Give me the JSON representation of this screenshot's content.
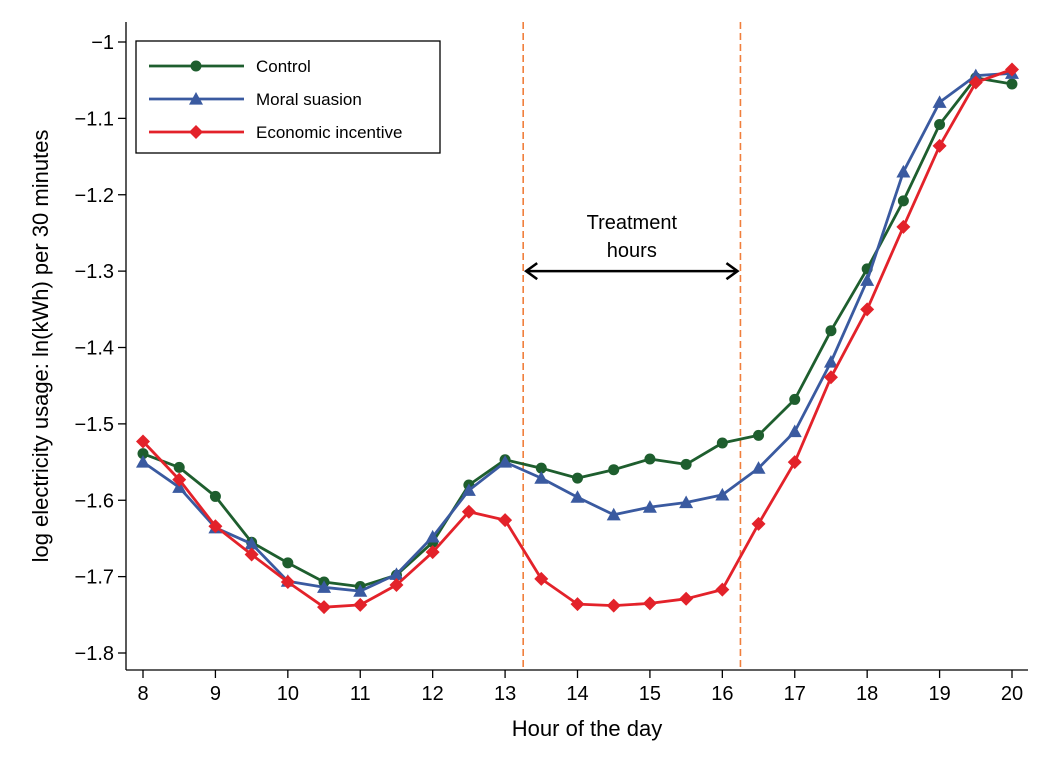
{
  "chart_data": {
    "type": "line",
    "title": "",
    "xlabel": "Hour of the day",
    "ylabel": "log electricity usage: ln(kWh) per 30 minutes",
    "xlim": [
      8,
      20
    ],
    "ylim": [
      -1.8,
      -1.0
    ],
    "x_ticks": [
      8,
      9,
      10,
      11,
      12,
      13,
      14,
      15,
      16,
      17,
      18,
      19,
      20
    ],
    "x_tick_labels": [
      "8",
      "9",
      "10",
      "11",
      "12",
      "13",
      "14",
      "15",
      "16",
      "17",
      "18",
      "19",
      "20"
    ],
    "y_ticks": [
      -1.8,
      -1.7,
      -1.6,
      -1.5,
      -1.4,
      -1.3,
      -1.2,
      -1.1,
      -1.0
    ],
    "y_tick_labels": [
      "−1.8",
      "−1.7",
      "−1.6",
      "−1.5",
      "−1.4",
      "−1.3",
      "−1.2",
      "−1.1",
      "−1"
    ],
    "grid": false,
    "legend_position": "top-left",
    "x": [
      8,
      8.5,
      9,
      9.5,
      10,
      10.5,
      11,
      11.5,
      12,
      12.5,
      13,
      13.5,
      14,
      14.5,
      15,
      15.5,
      16,
      16.5,
      17,
      17.5,
      18,
      18.5,
      19,
      19.5,
      20
    ],
    "series": [
      {
        "name": "Control",
        "color": "#1e5e2e",
        "marker": "circle",
        "values": [
          -1.539,
          -1.557,
          -1.595,
          -1.655,
          -1.682,
          -1.707,
          -1.713,
          -1.698,
          -1.655,
          -1.58,
          -1.547,
          -1.558,
          -1.571,
          -1.56,
          -1.546,
          -1.553,
          -1.525,
          -1.515,
          -1.468,
          -1.378,
          -1.297,
          -1.208,
          -1.108,
          -1.047,
          -1.055
        ]
      },
      {
        "name": "Moral suasion",
        "color": "#3a5aa0",
        "marker": "triangle",
        "values": [
          -1.55,
          -1.583,
          -1.636,
          -1.657,
          -1.706,
          -1.714,
          -1.719,
          -1.697,
          -1.648,
          -1.587,
          -1.55,
          -1.571,
          -1.596,
          -1.619,
          -1.609,
          -1.603,
          -1.593,
          -1.558,
          -1.51,
          -1.419,
          -1.312,
          -1.17,
          -1.079,
          -1.044,
          -1.041
        ]
      },
      {
        "name": "Economic incentive",
        "color": "#e3222a",
        "marker": "diamond",
        "values": [
          -1.523,
          -1.573,
          -1.634,
          -1.671,
          -1.707,
          -1.74,
          -1.737,
          -1.711,
          -1.668,
          -1.615,
          -1.626,
          -1.703,
          -1.736,
          -1.738,
          -1.735,
          -1.729,
          -1.717,
          -1.631,
          -1.55,
          -1.439,
          -1.35,
          -1.242,
          -1.136,
          -1.053,
          -1.036
        ]
      }
    ],
    "annotations": {
      "treatment_start": 13.25,
      "treatment_end": 16.25,
      "treatment_label_line1": "Treatment",
      "treatment_label_line2": "hours",
      "treatment_label_y": -1.3,
      "line_color": "#f07f3c"
    }
  }
}
